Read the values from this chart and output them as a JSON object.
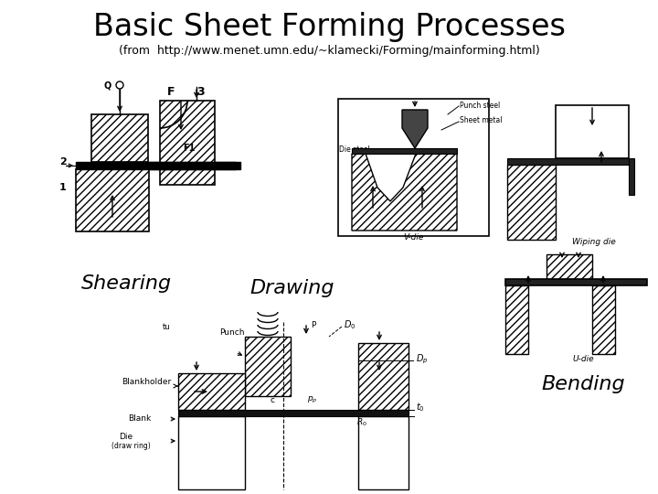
{
  "title": "Basic Sheet Forming Processes",
  "subtitle": "(from  http://www.menet.umn.edu/~klamecki/Forming/mainforming.html)",
  "label_shearing": "Shearing",
  "label_drawing": "Drawing",
  "label_bending": "Bending",
  "bg_color": "#ffffff",
  "title_fontsize": 24,
  "subtitle_fontsize": 9,
  "label_fontsize": 16,
  "title_color": "#000000",
  "line_color": "#000000"
}
